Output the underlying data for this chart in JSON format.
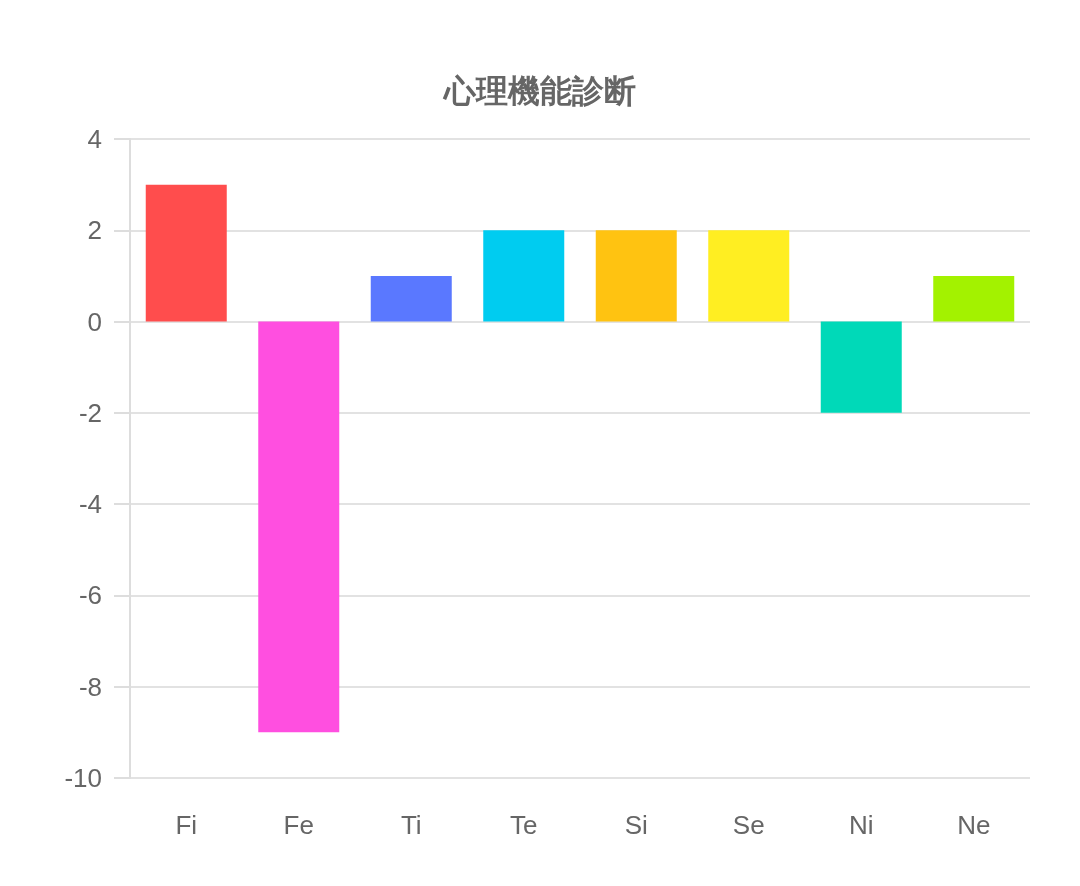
{
  "chart_data": {
    "type": "bar",
    "title": "心理機能診断",
    "categories": [
      "Fi",
      "Fe",
      "Ti",
      "Te",
      "Si",
      "Se",
      "Ni",
      "Ne"
    ],
    "values": [
      3,
      -9,
      1,
      2,
      2,
      2,
      -2,
      1
    ],
    "colors": [
      "#ff4d4d",
      "#ff4fe0",
      "#5a78ff",
      "#00ccf0",
      "#ffc311",
      "#ffee22",
      "#00d9b8",
      "#a3f200"
    ],
    "ylim": [
      -10,
      4
    ],
    "yticks": [
      -10,
      -8,
      -6,
      -4,
      -2,
      0,
      2,
      4
    ],
    "grid": "y"
  }
}
